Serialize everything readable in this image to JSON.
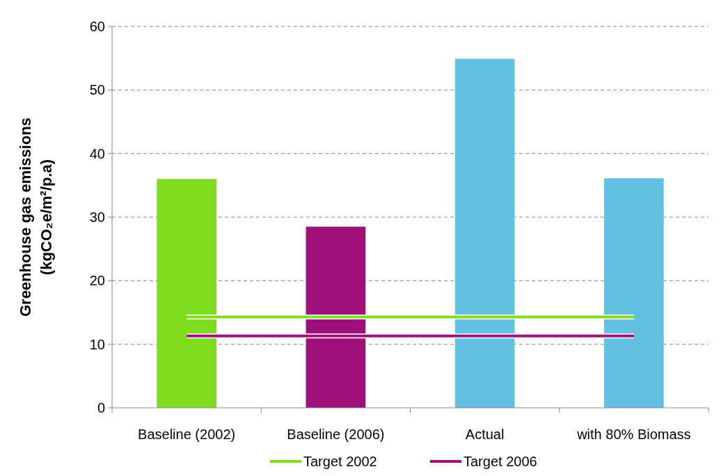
{
  "chart_data": {
    "type": "bar",
    "ylabel": "Greenhouse gas emissions\n(kgCO₂e/m²/p.a)",
    "categories": [
      "Baseline (2002)",
      "Baseline (2006)",
      "Actual",
      "with 80% Biomass"
    ],
    "series": [
      {
        "values": [
          36.0,
          28.5,
          54.9,
          36.1
        ],
        "colors": [
          "#80dc20",
          "#a0107a",
          "#62c0e0",
          "#62c0e0"
        ]
      },
      {
        "type": "line",
        "name": "Target 2002",
        "color": "#80dc20",
        "values": [
          14.3,
          14.3,
          14.3,
          14.3
        ]
      },
      {
        "type": "line",
        "name": "Target 2006",
        "color": "#a0107a",
        "values": [
          11.3,
          11.3,
          11.3,
          11.3
        ]
      }
    ],
    "ylim": [
      0,
      60
    ],
    "yticks": [
      0,
      10,
      20,
      30,
      40,
      50,
      60
    ],
    "grid": "y",
    "legend": "bottom",
    "marker": "none",
    "line_style": "solid"
  }
}
